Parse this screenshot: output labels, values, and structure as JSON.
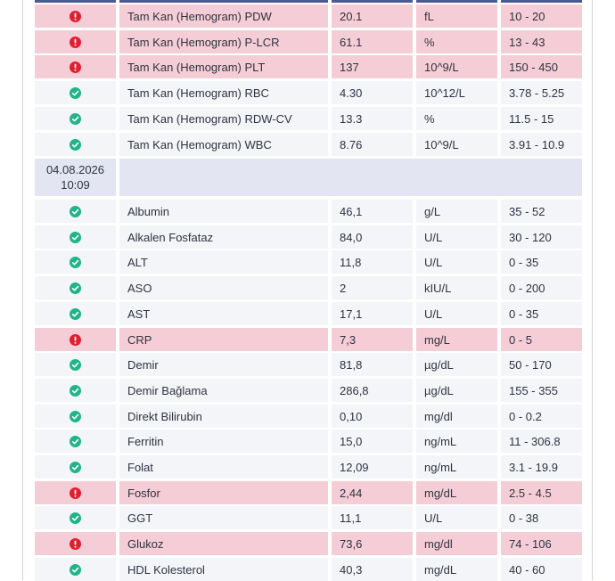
{
  "group1_rows": [
    {
      "status": "high",
      "name": "Tam Kan (Hemogram) PDW",
      "value": "20.1",
      "unit": "fL",
      "ref": "10 - 20"
    },
    {
      "status": "high",
      "name": "Tam Kan (Hemogram) P-LCR",
      "value": "61.1",
      "unit": "%",
      "ref": "13 - 43"
    },
    {
      "status": "high",
      "name": "Tam Kan (Hemogram) PLT",
      "value": "137",
      "unit": "10^9/L",
      "ref": "150 - 450"
    },
    {
      "status": "normal",
      "name": "Tam Kan (Hemogram) RBC",
      "value": "4.30",
      "unit": "10^12/L",
      "ref": "3.78 - 5.25"
    },
    {
      "status": "normal",
      "name": "Tam Kan (Hemogram) RDW-CV",
      "value": "13.3",
      "unit": "%",
      "ref": "11.5 - 15"
    },
    {
      "status": "normal",
      "name": "Tam Kan (Hemogram) WBC",
      "value": "8.76",
      "unit": "10^9/L",
      "ref": "3.91 - 10.9"
    }
  ],
  "date_header": {
    "date": "04.08.2026",
    "time": "10:09"
  },
  "group2_rows": [
    {
      "status": "normal",
      "name": "Albumin",
      "value": "46,1",
      "unit": "g/L",
      "ref": "35 - 52"
    },
    {
      "status": "normal",
      "name": "Alkalen Fosfataz",
      "value": "84,0",
      "unit": "U/L",
      "ref": "30 - 120"
    },
    {
      "status": "normal",
      "name": "ALT",
      "value": "11,8",
      "unit": "U/L",
      "ref": "0 - 35"
    },
    {
      "status": "normal",
      "name": "ASO",
      "value": "2",
      "unit": "kIU/L",
      "ref": "0 - 200"
    },
    {
      "status": "normal",
      "name": "AST",
      "value": "17,1",
      "unit": "U/L",
      "ref": "0 - 35"
    },
    {
      "status": "high",
      "name": "CRP",
      "value": "7,3",
      "unit": "mg/L",
      "ref": "0 - 5"
    },
    {
      "status": "normal",
      "name": "Demir",
      "value": "81,8",
      "unit": "µg/dL",
      "ref": "50 - 170"
    },
    {
      "status": "normal",
      "name": "Demir  Bağlama",
      "value": "286,8",
      "unit": "µg/dL",
      "ref": "155 - 355"
    },
    {
      "status": "normal",
      "name": "Direkt Bilirubin",
      "value": "0,10",
      "unit": "mg/dl",
      "ref": "0 - 0.2"
    },
    {
      "status": "normal",
      "name": "Ferritin",
      "value": "15,0",
      "unit": "ng/mL",
      "ref": "11 - 306.8"
    },
    {
      "status": "normal",
      "name": "Folat",
      "value": "12,09",
      "unit": "ng/mL",
      "ref": "3.1 - 19.9"
    },
    {
      "status": "high",
      "name": "Fosfor",
      "value": "2,44",
      "unit": "mg/dL",
      "ref": "2.5 - 4.5"
    },
    {
      "status": "normal",
      "name": "GGT",
      "value": "11,1",
      "unit": "U/L",
      "ref": "0 - 38"
    },
    {
      "status": "high",
      "name": "Glukoz",
      "value": "73,6",
      "unit": "mg/dl",
      "ref": "74 - 106"
    },
    {
      "status": "normal",
      "name": "HDL Kolesterol",
      "value": "40,3",
      "unit": "mg/dL",
      "ref": "40 - 60"
    }
  ],
  "colors": {
    "normal_row": "#f4f5f8",
    "high_row": "#f5cdd6",
    "normal_icon": "#20b489",
    "high_icon": "#e0202f",
    "date_band": "#e3e6f2",
    "header_bar": "#4a5a92"
  },
  "icons": {
    "normal": "check-circle-icon",
    "high": "exclamation-circle-icon"
  }
}
